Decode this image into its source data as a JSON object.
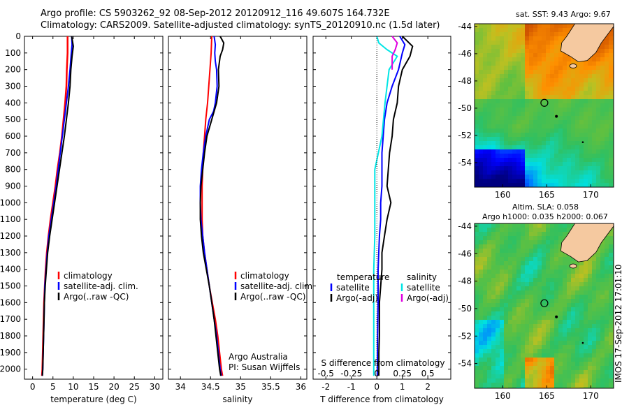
{
  "header": {
    "line1": "Argo profile: CS 5903262_92 08-Sep-2012 20120912_116 49.607S 164.732E",
    "line2": "Climatology: CARS2009. Satellite-adjusted climatology: synTS_20120910.nc (1.5d later)"
  },
  "colors": {
    "climatology": "#ff0000",
    "satellite": "#0000ff",
    "argo": "#000000",
    "salinity_satellite": "#00e5e5",
    "salinity_argo": "#e000e0",
    "land": "#f5c9a0"
  },
  "depth_axis": {
    "ticks": [
      "0",
      "100",
      "200",
      "300",
      "400",
      "500",
      "600",
      "700",
      "800",
      "900",
      "1000",
      "1100",
      "1200",
      "1300",
      "1400",
      "1500",
      "1600",
      "1700",
      "1800",
      "1900",
      "2000"
    ],
    "range": [
      0,
      2060
    ]
  },
  "temperature_panel": {
    "xlabel": "temperature (deg C)",
    "xticks": [
      "0",
      "5",
      "10",
      "15",
      "20",
      "25",
      "30"
    ],
    "xrange": [
      -2,
      32
    ],
    "legend": [
      "climatology",
      "satellite-adj. clim.",
      "Argo(..raw -QC)"
    ]
  },
  "salinity_panel": {
    "xlabel": "salinity",
    "xticks": [
      "34",
      "34.5",
      "35",
      "35.5",
      "36"
    ],
    "xrange": [
      33.8,
      36.1
    ],
    "legend": [
      "climatology",
      "satellite-adj. clim.",
      "Argo(..raw -QC)"
    ],
    "credit1": "Argo Australia",
    "credit2": "PI: Susan Wijffels"
  },
  "difference_panel": {
    "xlabel": "T difference from climatology",
    "xticks": [
      "-2",
      "-1",
      "0",
      "1",
      "2"
    ],
    "xrange": [
      -2.5,
      2.9
    ],
    "s_label": "S difference from climatology",
    "s_ticks": [
      "-0.5",
      "-0.25",
      "0",
      "0.25",
      "0.5"
    ],
    "legend_temperature": "temperature",
    "legend_salinity": "salinity",
    "legend_t_sat": "satellite",
    "legend_t_argo": "Argo(-adj)",
    "legend_s_sat": "satellite",
    "legend_s_argo": "Argo(-adj)"
  },
  "sst_map": {
    "title": "sat. SST: 9.43 Argo: 9.67",
    "yticks": [
      "-44",
      "-46",
      "-48",
      "-50",
      "-52",
      "-54"
    ],
    "xticks": [
      "160",
      "165",
      "170"
    ],
    "lon_range": [
      156.8,
      172.6
    ],
    "lat_range": [
      -55.8,
      -43.8
    ],
    "float_lon": 164.732,
    "float_lat": -49.607
  },
  "sla_map": {
    "title_line1": "Altim. SLA: 0.058",
    "title_line2": "Argo h1000: 0.035 h2000: 0.067",
    "yticks": [
      "-44",
      "-46",
      "-48",
      "-50",
      "-52",
      "-54"
    ],
    "xticks": [
      "160",
      "165",
      "170"
    ],
    "lon_range": [
      156.8,
      172.6
    ],
    "lat_range": [
      -55.8,
      -43.8
    ],
    "float_lon": 164.732,
    "float_lat": -49.607
  },
  "stamp": "IMOS 17-Sep-2012 17:01:10",
  "chart_data": [
    {
      "type": "line",
      "title": "",
      "xlabel": "temperature (deg C)",
      "ylabel": "",
      "xlim": [
        -2,
        32
      ],
      "ylim": [
        2060,
        0
      ],
      "series": [
        {
          "name": "climatology",
          "points": [
            [
              8.6,
              0
            ],
            [
              8.6,
              100
            ],
            [
              8.4,
              200
            ],
            [
              8.3,
              300
            ],
            [
              8.0,
              400
            ],
            [
              7.6,
              500
            ],
            [
              7.2,
              600
            ],
            [
              6.7,
              700
            ],
            [
              6.1,
              800
            ],
            [
              5.6,
              900
            ],
            [
              5.0,
              1000
            ],
            [
              4.4,
              1100
            ],
            [
              3.9,
              1200
            ],
            [
              3.5,
              1300
            ],
            [
              3.2,
              1400
            ],
            [
              3.0,
              1500
            ],
            [
              2.8,
              1600
            ],
            [
              2.7,
              1700
            ],
            [
              2.6,
              1800
            ],
            [
              2.5,
              1900
            ],
            [
              2.4,
              2000
            ],
            [
              2.3,
              2040
            ]
          ]
        },
        {
          "name": "satellite-adj. clim.",
          "points": [
            [
              9.6,
              0
            ],
            [
              9.7,
              50
            ],
            [
              9.5,
              100
            ],
            [
              9.2,
              200
            ],
            [
              8.8,
              300
            ],
            [
              8.3,
              400
            ],
            [
              7.8,
              500
            ],
            [
              7.3,
              600
            ],
            [
              6.8,
              700
            ],
            [
              6.3,
              800
            ],
            [
              5.8,
              900
            ],
            [
              5.2,
              1000
            ],
            [
              4.6,
              1100
            ],
            [
              4.0,
              1200
            ],
            [
              3.6,
              1300
            ],
            [
              3.3,
              1400
            ],
            [
              3.0,
              1500
            ],
            [
              2.9,
              1600
            ],
            [
              2.8,
              1700
            ],
            [
              2.7,
              1800
            ],
            [
              2.6,
              1900
            ],
            [
              2.5,
              2000
            ],
            [
              2.4,
              2040
            ]
          ]
        },
        {
          "name": "Argo(..raw -QC)",
          "points": [
            [
              9.6,
              0
            ],
            [
              10.0,
              60
            ],
            [
              9.7,
              120
            ],
            [
              9.4,
              200
            ],
            [
              9.2,
              300
            ],
            [
              8.8,
              400
            ],
            [
              8.3,
              500
            ],
            [
              7.8,
              600
            ],
            [
              7.2,
              700
            ],
            [
              6.6,
              800
            ],
            [
              6.0,
              900
            ],
            [
              5.4,
              1000
            ],
            [
              4.8,
              1100
            ],
            [
              4.2,
              1200
            ],
            [
              3.7,
              1300
            ],
            [
              3.4,
              1400
            ],
            [
              3.1,
              1500
            ],
            [
              2.9,
              1600
            ],
            [
              2.8,
              1700
            ],
            [
              2.7,
              1800
            ],
            [
              2.6,
              1900
            ],
            [
              2.5,
              2000
            ],
            [
              2.4,
              2040
            ]
          ]
        }
      ]
    },
    {
      "type": "line",
      "title": "",
      "xlabel": "salinity",
      "ylabel": "",
      "xlim": [
        33.8,
        36.1
      ],
      "ylim": [
        2060,
        0
      ],
      "series": [
        {
          "name": "climatology",
          "points": [
            [
              34.52,
              0
            ],
            [
              34.51,
              100
            ],
            [
              34.49,
              200
            ],
            [
              34.47,
              300
            ],
            [
              34.45,
              400
            ],
            [
              34.42,
              500
            ],
            [
              34.4,
              600
            ],
            [
              34.38,
              700
            ],
            [
              34.37,
              800
            ],
            [
              34.36,
              900
            ],
            [
              34.36,
              1000
            ],
            [
              34.36,
              1100
            ],
            [
              34.37,
              1200
            ],
            [
              34.4,
              1300
            ],
            [
              34.44,
              1400
            ],
            [
              34.48,
              1500
            ],
            [
              34.53,
              1600
            ],
            [
              34.58,
              1700
            ],
            [
              34.62,
              1800
            ],
            [
              34.65,
              1900
            ],
            [
              34.68,
              2000
            ],
            [
              34.7,
              2040
            ]
          ]
        },
        {
          "name": "satellite-adj. clim.",
          "points": [
            [
              34.56,
              0
            ],
            [
              34.58,
              50
            ],
            [
              34.57,
              100
            ],
            [
              34.58,
              150
            ],
            [
              34.6,
              200
            ],
            [
              34.61,
              300
            ],
            [
              34.58,
              400
            ],
            [
              34.55,
              450
            ],
            [
              34.48,
              500
            ],
            [
              34.42,
              600
            ],
            [
              34.38,
              700
            ],
            [
              34.35,
              800
            ],
            [
              34.33,
              900
            ],
            [
              34.33,
              1000
            ],
            [
              34.34,
              1100
            ],
            [
              34.37,
              1200
            ],
            [
              34.4,
              1300
            ],
            [
              34.44,
              1400
            ],
            [
              34.48,
              1500
            ],
            [
              34.52,
              1600
            ],
            [
              34.56,
              1700
            ],
            [
              34.6,
              1800
            ],
            [
              34.63,
              1900
            ],
            [
              34.66,
              2000
            ],
            [
              34.68,
              2040
            ]
          ]
        },
        {
          "name": "Argo(..raw -QC)",
          "points": [
            [
              34.66,
              0
            ],
            [
              34.72,
              40
            ],
            [
              34.7,
              80
            ],
            [
              34.66,
              120
            ],
            [
              34.63,
              200
            ],
            [
              34.64,
              300
            ],
            [
              34.6,
              400
            ],
            [
              34.52,
              500
            ],
            [
              34.44,
              600
            ],
            [
              34.4,
              700
            ],
            [
              34.37,
              800
            ],
            [
              34.34,
              900
            ],
            [
              34.33,
              1000
            ],
            [
              34.33,
              1100
            ],
            [
              34.35,
              1200
            ],
            [
              34.38,
              1300
            ],
            [
              34.43,
              1400
            ],
            [
              34.48,
              1500
            ],
            [
              34.52,
              1600
            ],
            [
              34.56,
              1700
            ],
            [
              34.59,
              1800
            ],
            [
              34.62,
              1900
            ],
            [
              34.65,
              2000
            ],
            [
              34.67,
              2040
            ]
          ]
        }
      ]
    },
    {
      "type": "line",
      "title": "",
      "xlabel": "T difference from climatology",
      "ylabel": "",
      "xlim": [
        -2.5,
        2.9
      ],
      "ylim": [
        2060,
        0
      ],
      "series": [
        {
          "name": "temperature satellite",
          "points": [
            [
              0.9,
              0
            ],
            [
              1.1,
              50
            ],
            [
              1.0,
              100
            ],
            [
              0.85,
              200
            ],
            [
              0.6,
              300
            ],
            [
              0.4,
              400
            ],
            [
              0.3,
              500
            ],
            [
              0.25,
              600
            ],
            [
              0.2,
              700
            ],
            [
              0.2,
              800
            ],
            [
              0.2,
              900
            ],
            [
              0.15,
              1000
            ],
            [
              0.15,
              1100
            ],
            [
              0.1,
              1200
            ],
            [
              0.05,
              1400
            ],
            [
              0.05,
              1600
            ],
            [
              0.03,
              1800
            ],
            [
              0.02,
              2000
            ],
            [
              0.02,
              2040
            ]
          ]
        },
        {
          "name": "temperature Argo(-adj)",
          "points": [
            [
              1.0,
              0
            ],
            [
              1.4,
              60
            ],
            [
              1.3,
              120
            ],
            [
              1.0,
              200
            ],
            [
              0.85,
              300
            ],
            [
              0.8,
              400
            ],
            [
              0.65,
              500
            ],
            [
              0.6,
              600
            ],
            [
              0.5,
              700
            ],
            [
              0.45,
              800
            ],
            [
              0.4,
              900
            ],
            [
              0.55,
              1000
            ],
            [
              0.4,
              1100
            ],
            [
              0.3,
              1200
            ],
            [
              0.2,
              1300
            ],
            [
              0.2,
              1400
            ],
            [
              0.15,
              1500
            ],
            [
              0.1,
              1600
            ],
            [
              0.1,
              1700
            ],
            [
              0.1,
              1800
            ],
            [
              0.08,
              1900
            ],
            [
              0.08,
              2000
            ],
            [
              0.08,
              2040
            ]
          ]
        },
        {
          "name": "salinity satellite",
          "points": [
            [
              0.0,
              0
            ],
            [
              0.02,
              40
            ],
            [
              0.1,
              80
            ],
            [
              0.2,
              120
            ],
            [
              0.12,
              200
            ],
            [
              0.08,
              400
            ],
            [
              0.05,
              600
            ],
            [
              -0.02,
              800
            ],
            [
              -0.02,
              1000
            ],
            [
              -0.02,
              1200
            ],
            [
              -0.03,
              1400
            ],
            [
              -0.03,
              1600
            ],
            [
              -0.03,
              1800
            ],
            [
              -0.03,
              2000
            ],
            [
              -0.03,
              2040
            ]
          ]
        },
        {
          "name": "salinity Argo(-adj)",
          "points": [
            [
              0.15,
              0
            ],
            [
              0.2,
              40
            ],
            [
              0.18,
              80
            ],
            [
              0.15,
              120
            ],
            [
              0.15,
              200
            ]
          ]
        }
      ]
    }
  ]
}
